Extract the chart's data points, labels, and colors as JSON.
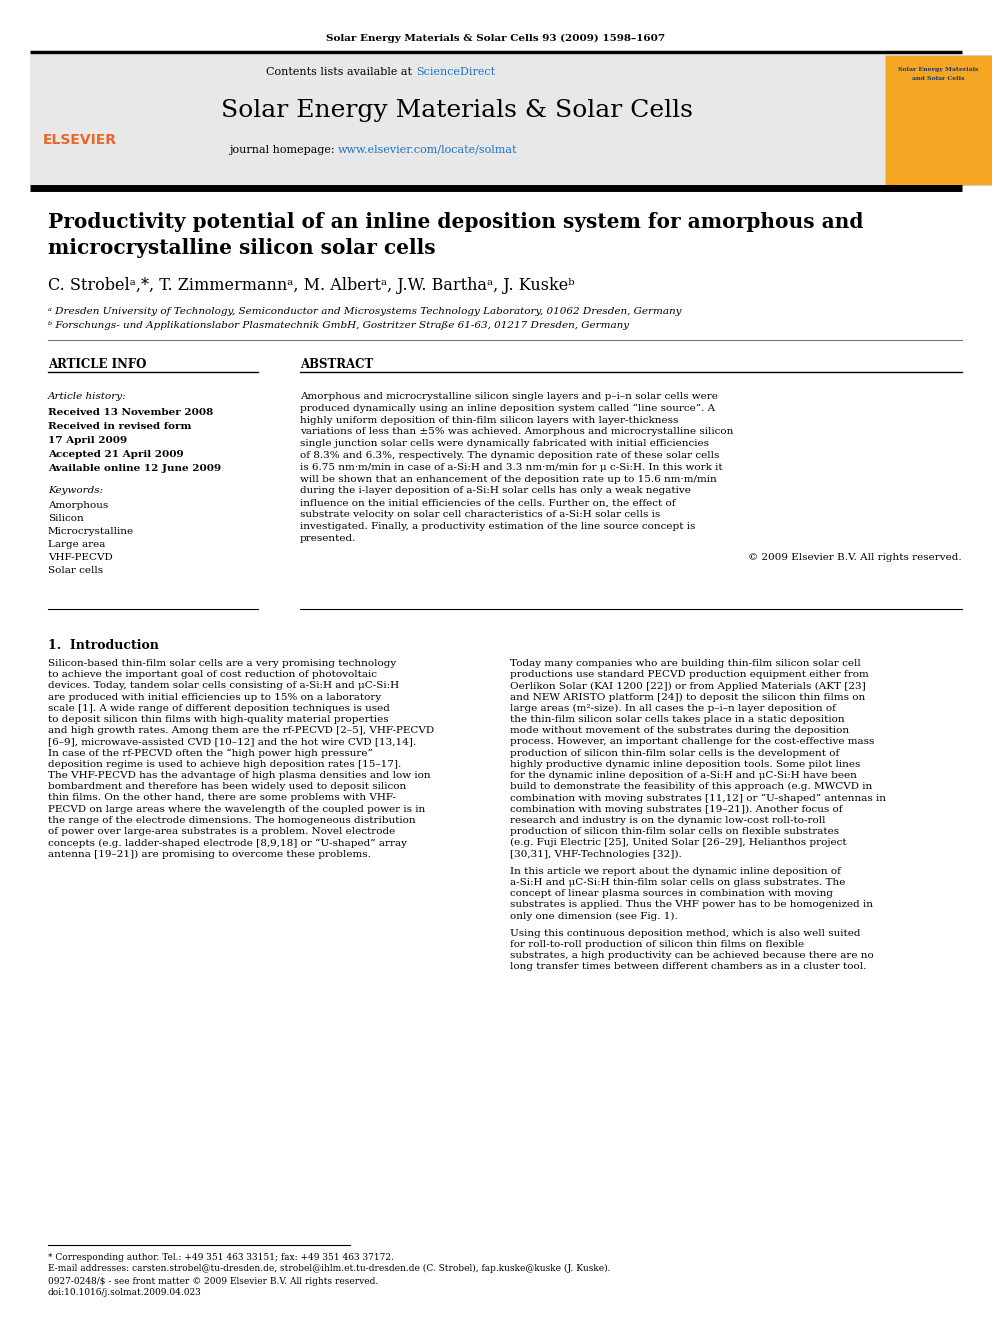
{
  "page_bg": "#ffffff",
  "top_journal_line": "Solar Energy Materials & Solar Cells 93 (2009) 1598–1607",
  "header_bg": "#e8e8e8",
  "contents_text": "Contents lists available at ",
  "sciencedirect_text": "ScienceDirect",
  "sciencedirect_color": "#1a73c8",
  "journal_title": "Solar Energy Materials & Solar Cells",
  "journal_homepage_prefix": "journal homepage: ",
  "journal_homepage_url": "www.elsevier.com/locate/solmat",
  "journal_homepage_color": "#1a73c8",
  "divider_color": "#000000",
  "paper_title_line1": "Productivity potential of an inline deposition system for amorphous and",
  "paper_title_line2": "microcrystalline silicon solar cells",
  "authors": "C. Strobelᵃ,*, T. Zimmermannᵃ, M. Albertᵃ, J.W. Barthaᵃ, J. Kuskeᵇ",
  "affil_a": "ᵃ Dresden University of Technology, Semiconductor and Microsystems Technology Laboratory, 01062 Dresden, Germany",
  "affil_b": "ᵇ Forschungs- und Applikationslabor Plasmatechnik GmbH, Gostritzer Straße 61-63, 01217 Dresden, Germany",
  "article_info_header": "ARTICLE INFO",
  "abstract_header": "ABSTRACT",
  "article_history_label": "Article history:",
  "received1": "Received 13 November 2008",
  "received2": "Received in revised form",
  "date_april": "17 April 2009",
  "accepted": "Accepted 21 April 2009",
  "available": "Available online 12 June 2009",
  "keywords_label": "Keywords:",
  "keywords": [
    "Amorphous",
    "Silicon",
    "Microcrystalline",
    "Large area",
    "VHF-PECVD",
    "Solar cells"
  ],
  "abstract_text": "Amorphous and microcrystalline silicon single layers and p–i–n solar cells were produced dynamically using an inline deposition system called “line source”. A highly uniform deposition of thin-film silicon layers with layer-thickness variations of less than ±5% was achieved. Amorphous and microcrystalline silicon single junction solar cells were dynamically fabricated with initial efficiencies of 8.3% and 6.3%, respectively. The dynamic deposition rate of these solar cells is 6.75 nm·m/min in case of a-Si:H and 3.3 nm·m/min for μ c-Si:H. In this work it will be shown that an enhancement of the deposition rate up to 15.6 nm·m/min during the i-layer deposition of a-Si:H solar cells has only a weak negative influence on the initial efficiencies of the cells. Further on, the effect of substrate velocity on solar cell characteristics of a-Si:H solar cells is investigated. Finally, a productivity estimation of the line source concept is presented.",
  "copyright": "© 2009 Elsevier B.V. All rights reserved.",
  "intro_header": "1.  Introduction",
  "intro_col1": "Silicon-based thin-film solar cells are a very promising technology to achieve the important goal of cost reduction of photovoltaic devices. Today, tandem solar cells consisting of a-Si:H and μC-Si:H are produced with initial efficiencies up to 15% on a laboratory scale [1]. A wide range of different deposition techniques is used to deposit silicon thin films with high-quality material properties and high growth rates. Among them are the rf-PECVD [2–5], VHF-PECVD [6–9], microwave-assisted CVD [10–12] and the hot wire CVD [13,14]. In case of the rf-PECVD often the “high power high pressure” deposition regime is used to achieve high deposition rates [15–17]. The VHF-PECVD has the advantage of high plasma densities and low ion bombardment and therefore has been widely used to deposit silicon thin films. On the other hand, there are some problems with VHF-PECVD on large areas where the wavelength of the coupled power is in the range of the electrode dimensions. The homogeneous distribution of power over large-area substrates is a problem. Novel electrode concepts (e.g. ladder-shaped electrode [8,9,18] or “U-shaped” array antenna [19–21]) are promising to overcome these problems.",
  "intro_col2": "Today many companies who are building thin-film silicon solar cell productions use standard PECVD production equipment either from Oerlikon Solar (KAI 1200 [22]) or from Applied Materials (AKT [23] and NEW ARISTO platform [24]) to deposit the silicon thin films on large areas (m²-size). In all cases the p–i–n layer deposition of the thin-film silicon solar cells takes place in a static deposition mode without movement of the substrates during the deposition process. However, an important challenge for the cost-effective mass production of silicon thin-film solar cells is the development of highly productive dynamic inline deposition tools. Some pilot lines for the dynamic inline deposition of a-Si:H and μC-Si:H have been build to demonstrate the feasibility of this approach (e.g. MWCVD in combination with moving substrates [11,12] or “U-shaped” antennas in combination with moving substrates [19–21]). Another focus of research and industry is on the dynamic low-cost roll-to-roll production of silicon thin-film solar cells on flexible substrates (e.g. Fuji Electric [25], United Solar [26–29], Helianthos project [30,31], VHF-Technologies [32]).",
  "intro_col2b": "In this article we report about the dynamic inline deposition of a-Si:H and μC-Si:H thin-film solar cells on glass substrates. The concept of linear plasma sources in combination with moving substrates is applied. Thus the VHF power has to be homogenized in only one dimension (see Fig. 1).",
  "intro_col2c": "Using this continuous deposition method, which is also well suited for roll-to-roll production of silicon thin films on flexible substrates, a high productivity can be achieved because there are no long transfer times between different chambers as in a cluster tool.",
  "footnote_star": "* Corresponding author. Tel.: +49 351 463 33151; fax: +49 351 463 37172.",
  "footnote_email": "E-mail addresses: carsten.strobel@tu-dresden.de, strobel@ihlm.et.tu-dresden.de (C. Strobel), fap.kuske@kuske (J. Kuske).",
  "footnote_issn": "0927-0248/$ - see front matter © 2009 Elsevier B.V. All rights reserved.",
  "footnote_doi": "doi:10.1016/j.solmat.2009.04.023"
}
